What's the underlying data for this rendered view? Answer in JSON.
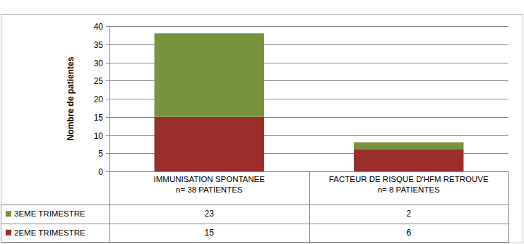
{
  "chart_data": {
    "type": "bar",
    "stacked": true,
    "grid": true,
    "y_label": "Nombre de patientes",
    "categories": [
      "IMMUNISATION SPONTANEE\nn= 38 PATIENTES",
      "FACTEUR DE RISQUE D'HFM RETROUVE\nn= 8 PATIENTES"
    ],
    "series": [
      {
        "name": "2EME TRIMESTRE",
        "color": "#9b2d2b",
        "values": [
          15,
          6
        ]
      },
      {
        "name": "3EME TRIMESTRE",
        "color": "#77933c",
        "values": [
          23,
          2
        ]
      }
    ],
    "ylim": [
      0,
      40
    ],
    "yticks": [
      0,
      5,
      10,
      15,
      20,
      25,
      30,
      35,
      40
    ]
  }
}
